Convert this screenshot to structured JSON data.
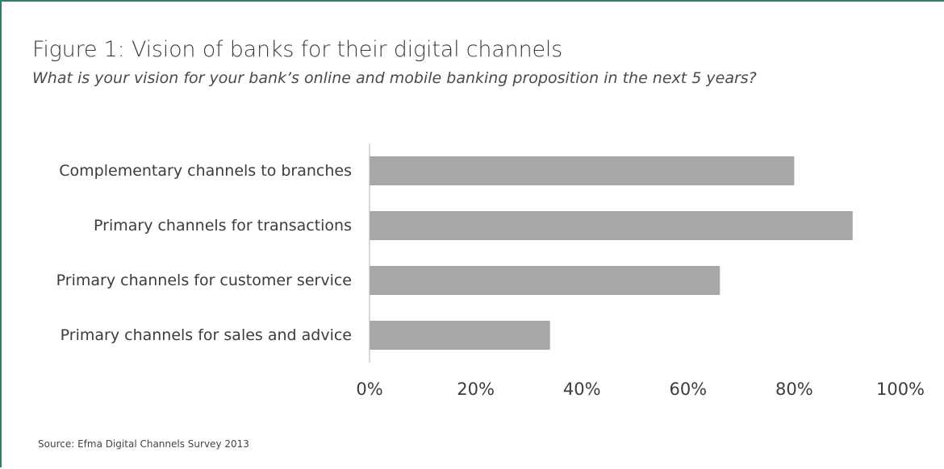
{
  "header": {
    "title": "Figure 1: Vision of banks for their digital channels",
    "subtitle": "What is your vision for your bank’s online and mobile banking proposition in the next 5 years?"
  },
  "footer": {
    "source": "Source: Efma Digital Channels Survey 2013"
  },
  "colors": {
    "bar": "#a7a7a9",
    "frame": "#2e7d6e"
  },
  "chart_data": {
    "type": "bar",
    "orientation": "horizontal",
    "categories": [
      "Complementary channels to branches",
      "Primary channels for transactions",
      "Primary channels for customer service",
      "Primary channels for sales and advice"
    ],
    "values": [
      80,
      91,
      66,
      34
    ],
    "xlim": [
      0,
      100
    ],
    "xticks": [
      0,
      20,
      40,
      60,
      80,
      100
    ],
    "xtick_labels": [
      "0%",
      "20%",
      "40%",
      "60%",
      "80%",
      "100%"
    ],
    "grid": false,
    "legend": "none"
  }
}
